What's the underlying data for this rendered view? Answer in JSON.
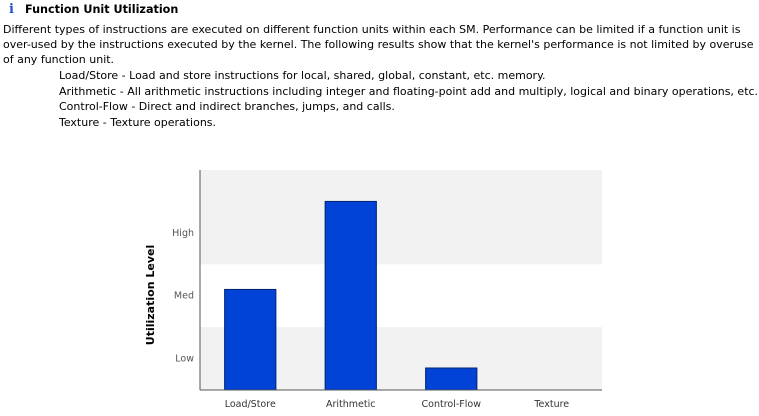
{
  "section": {
    "icon": "info-icon",
    "title": "Function Unit Utilization",
    "description": "Different types of instructions are executed on different function units within each SM. Performance can be limited if a function unit is over-used by the instructions executed by the kernel. The following results show that the kernel's performance is not limited by overuse of any function unit."
  },
  "units": [
    {
      "text": "Load/Store - Load and store instructions for local, shared, global, constant, etc. memory."
    },
    {
      "text": "Arithmetic - All arithmetic instructions including integer and floating-point add and multiply, logical and binary operations, etc."
    },
    {
      "text": "Control-Flow - Direct and indirect branches, jumps, and calls."
    },
    {
      "text": "Texture - Texture operations."
    }
  ],
  "colors": {
    "bar": "#0043d6",
    "bar_stroke": "#00246e",
    "band": "#f2f2f2",
    "axis": "#555555",
    "icon": "#1f4fd0"
  },
  "chart_data": {
    "type": "bar",
    "categories": [
      "Load/Store",
      "Arithmetic",
      "Control-Flow",
      "Texture"
    ],
    "values": [
      1.6,
      3.0,
      0.35,
      0
    ],
    "ylabel": "Utilization Level",
    "xlabel": "",
    "ylim": [
      0,
      3.5
    ],
    "yticks": [
      {
        "label": "Low",
        "value": 0.5
      },
      {
        "label": "Med",
        "value": 1.5
      },
      {
        "label": "High",
        "value": 2.5
      }
    ],
    "bands": [
      [
        0,
        1
      ],
      [
        2,
        3.5
      ]
    ],
    "grid": false,
    "legend": "none"
  }
}
